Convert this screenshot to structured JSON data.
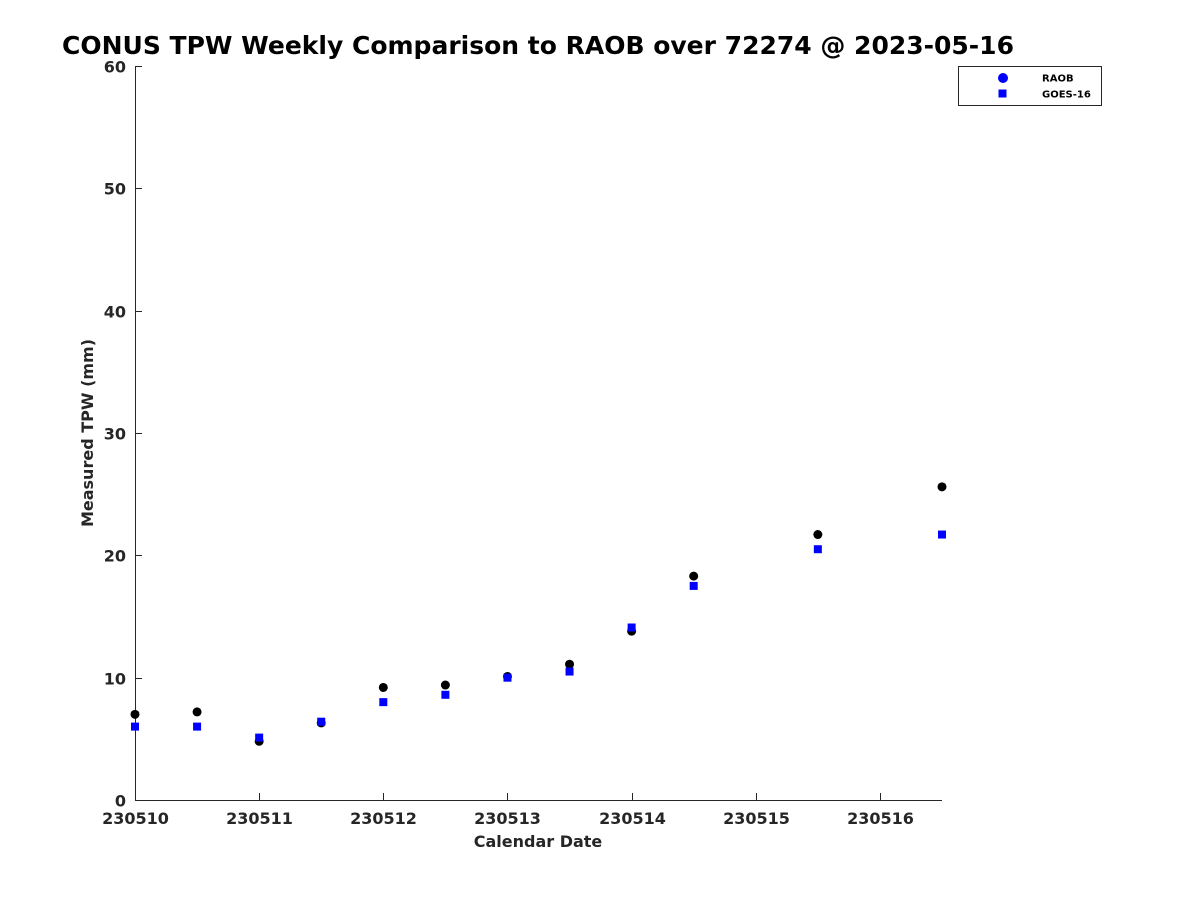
{
  "chart_data": {
    "type": "scatter",
    "title": "CONUS TPW Weekly Comparison to RAOB over 72274 @ 2023-05-16",
    "xlabel": "Calendar Date",
    "ylabel": "Measured TPW (mm)",
    "xlim": [
      230510,
      230516.5
    ],
    "ylim": [
      0,
      60
    ],
    "x_ticks": [
      230510,
      230511,
      230512,
      230513,
      230514,
      230515,
      230516
    ],
    "x_tick_labels": [
      "230510",
      "230511",
      "230512",
      "230513",
      "230514",
      "230515",
      "230516"
    ],
    "y_ticks": [
      0,
      10,
      20,
      30,
      40,
      50,
      60
    ],
    "y_tick_labels": [
      "0",
      "10",
      "20",
      "30",
      "40",
      "50",
      "60"
    ],
    "grid": false,
    "legend_position": "top-right",
    "series": [
      {
        "name": "RAOB",
        "marker": "circle",
        "color": "#000000",
        "legend_color": "#0000ff",
        "x": [
          230510,
          230510.5,
          230511,
          230511.5,
          230512,
          230512.5,
          230513,
          230513.5,
          230514,
          230514.5,
          230515.5,
          230516.5
        ],
        "y": [
          7.0,
          7.2,
          4.8,
          6.3,
          9.2,
          9.4,
          10.1,
          11.1,
          13.8,
          18.3,
          21.7,
          25.6
        ]
      },
      {
        "name": "GOES-16",
        "marker": "square",
        "color": "#0000ff",
        "legend_color": "#0000ff",
        "x": [
          230510,
          230510.5,
          230511,
          230511.5,
          230512,
          230512.5,
          230513,
          230513.5,
          230514,
          230514.5,
          230515.5,
          230516.5
        ],
        "y": [
          6.0,
          6.0,
          5.1,
          6.4,
          8.0,
          8.6,
          10.0,
          10.5,
          14.1,
          17.5,
          20.5,
          21.7
        ]
      }
    ]
  }
}
